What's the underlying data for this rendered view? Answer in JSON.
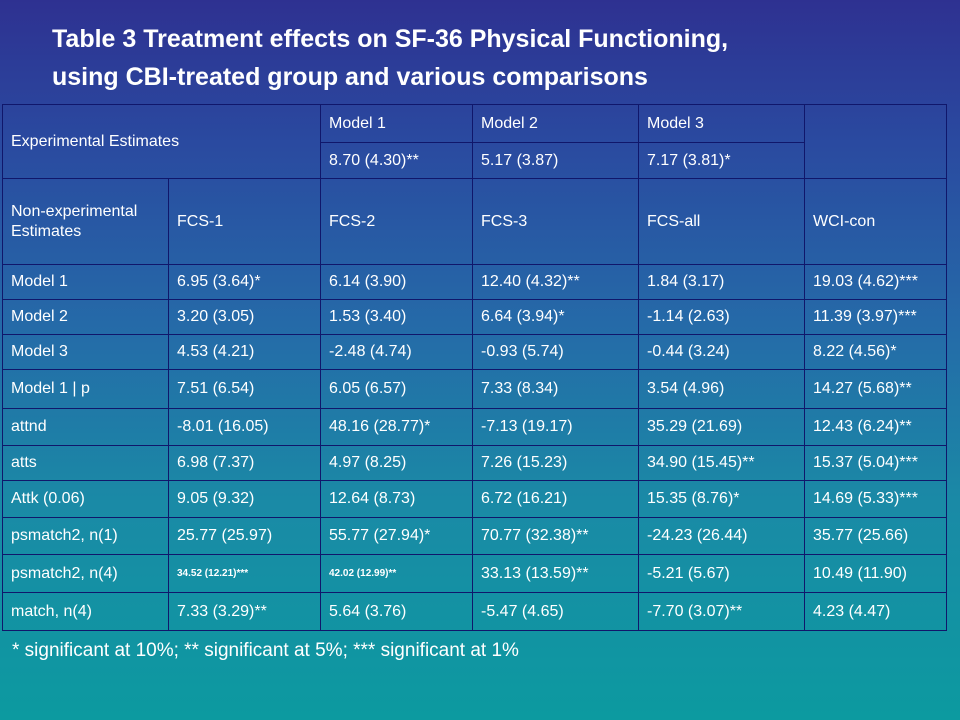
{
  "title": {
    "line1": "Table 3 Treatment effects on SF-36 Physical Functioning,",
    "line2": "using CBI-treated group and various comparisons"
  },
  "table": {
    "experimental_label": "Experimental Estimates",
    "model_headers": [
      "Model 1",
      "Model 2",
      "Model 3"
    ],
    "experimental_values": [
      "8.70 (4.30)**",
      "5.17 (3.87)",
      "7.17 (3.81)*"
    ],
    "nonexp_label": "Non-experimental Estimates",
    "columns": [
      "FCS-1",
      "FCS-2",
      "FCS-3",
      "FCS-all",
      "WCI-con"
    ],
    "rows": [
      {
        "label": "Model 1",
        "cells": [
          "6.95 (3.64)*",
          "6.14 (3.90)",
          "12.40 (4.32)**",
          "1.84 (3.17)",
          "19.03 (4.62)***"
        ]
      },
      {
        "label": "Model 2",
        "cells": [
          "3.20 (3.05)",
          "1.53 (3.40)",
          "6.64 (3.94)*",
          "-1.14 (2.63)",
          "11.39 (3.97)***"
        ]
      },
      {
        "label": "Model 3",
        "cells": [
          "4.53 (4.21)",
          "-2.48 (4.74)",
          "-0.93 (5.74)",
          "-0.44 (3.24)",
          "8.22 (4.56)*"
        ]
      },
      {
        "label": "Model 1 | p",
        "cells": [
          "7.51 (6.54)",
          "6.05 (6.57)",
          "7.33 (8.34)",
          "3.54 (4.96)",
          "14.27 (5.68)**"
        ]
      },
      {
        "label": "attnd",
        "cells": [
          "-8.01 (16.05)",
          "48.16 (28.77)*",
          "-7.13 (19.17)",
          "35.29 (21.69)",
          "12.43 (6.24)**"
        ]
      },
      {
        "label": "atts",
        "cells": [
          "6.98 (7.37)",
          "4.97 (8.25)",
          "7.26 (15.23)",
          "34.90 (15.45)**",
          "15.37 (5.04)***"
        ]
      },
      {
        "label": "Attk (0.06)",
        "cells": [
          "9.05 (9.32)",
          "12.64 (8.73)",
          "6.72 (16.21)",
          "15.35 (8.76)*",
          "14.69 (5.33)***"
        ]
      },
      {
        "label": "psmatch2, n(1)",
        "cells": [
          "25.77 (25.97)",
          "55.77 (27.94)*",
          "70.77 (32.38)**",
          "-24.23 (26.44)",
          "35.77 (25.66)"
        ]
      },
      {
        "label": "psmatch2, n(4)",
        "cells": [
          "34.52 (12.21)***",
          "42.02 (12.99)**",
          "33.13 (13.59)**",
          "-5.21 (5.67)",
          "10.49 (11.90)"
        ]
      },
      {
        "label": "match, n(4)",
        "cells": [
          "7.33 (3.29)**",
          "5.64 (3.76)",
          "-5.47 (4.65)",
          "-7.70 (3.07)**",
          "4.23 (4.47)"
        ]
      }
    ]
  },
  "footnote": "* significant at 10%; ** significant at 5%; *** significant at 1%"
}
